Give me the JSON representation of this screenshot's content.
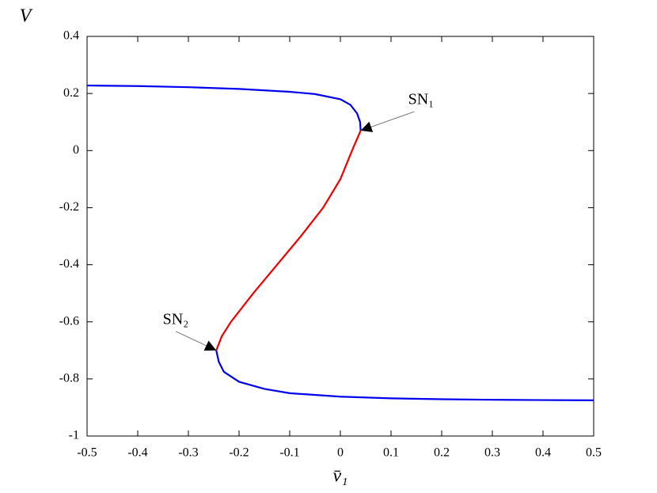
{
  "chart_data": {
    "type": "line",
    "xlabel": "v̄₁",
    "ylabel": "V",
    "xlim": [
      -0.5,
      0.5
    ],
    "ylim": [
      -1,
      0.4
    ],
    "xticks": [
      -0.5,
      -0.4,
      -0.3,
      -0.2,
      -0.1,
      0,
      0.1,
      0.2,
      0.3,
      0.4,
      0.5
    ],
    "yticks": [
      -1,
      -0.8,
      -0.6,
      -0.4,
      -0.2,
      0,
      0.2,
      0.4
    ],
    "grid": false,
    "series": [
      {
        "color": "#0000ee",
        "x": [
          -0.5,
          -0.4,
          -0.3,
          -0.2,
          -0.1,
          -0.05,
          0,
          0.02,
          0.033,
          0.039,
          0.04
        ],
        "values": [
          0.228,
          0.226,
          0.222,
          0.216,
          0.206,
          0.198,
          0.18,
          0.16,
          0.13,
          0.1,
          0.07
        ]
      },
      {
        "color": "#ee0000",
        "x": [
          0.04,
          0.023,
          0.0,
          -0.034,
          -0.078,
          -0.125,
          -0.172,
          -0.216,
          -0.234,
          -0.245
        ],
        "values": [
          0.07,
          0,
          -0.1,
          -0.2,
          -0.3,
          -0.4,
          -0.5,
          -0.6,
          -0.65,
          -0.7
        ]
      },
      {
        "color": "#0000ee",
        "x": [
          -0.245,
          -0.24,
          -0.23,
          -0.2,
          -0.15,
          -0.1,
          0,
          0.1,
          0.2,
          0.3,
          0.4,
          0.5
        ],
        "values": [
          -0.7,
          -0.74,
          -0.775,
          -0.81,
          -0.835,
          -0.85,
          -0.862,
          -0.868,
          -0.871,
          -0.873,
          -0.874,
          -0.875
        ]
      }
    ],
    "annotations": [
      {
        "text": "SN₁",
        "x": 0.04,
        "y": 0.07
      },
      {
        "text": "SN₂",
        "x": -0.245,
        "y": -0.7
      }
    ]
  }
}
